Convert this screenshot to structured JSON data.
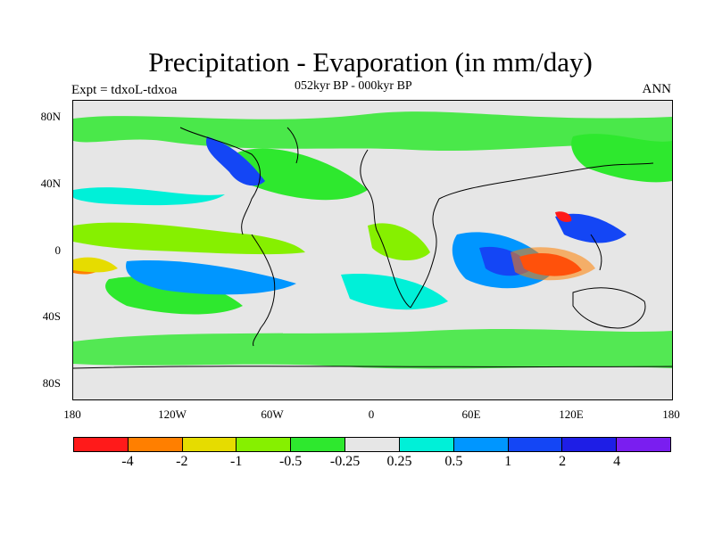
{
  "title": "Precipitation - Evaporation (in mm/day)",
  "subtitle": "052kyr BP - 000kyr BP",
  "left_label": "Expt = tdxoL-tdxoa",
  "right_label": "ANN",
  "lat_ticks": [
    "80N",
    "40N",
    "0",
    "40S",
    "80S"
  ],
  "lon_ticks": [
    "180",
    "120W",
    "60W",
    "0",
    "60E",
    "120E",
    "180"
  ],
  "colorbar": {
    "colors": [
      "#ff1a1a",
      "#ff7f00",
      "#e6dc00",
      "#86f000",
      "#2ee82e",
      "#e6e6e6",
      "#00f0d8",
      "#0096ff",
      "#1446f5",
      "#1e1ee6",
      "#7a1ef0"
    ],
    "labels": [
      "-4",
      "-2",
      "-1",
      "-0.5",
      "-0.25",
      "0.25",
      "0.5",
      "1",
      "2",
      "4"
    ]
  }
}
